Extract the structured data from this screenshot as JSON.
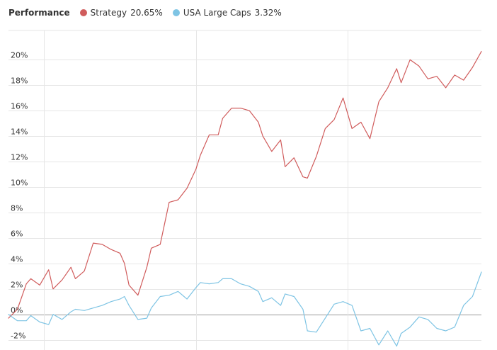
{
  "legend": {
    "title": "Performance",
    "items": [
      {
        "name": "Strategy",
        "value": "20.65%",
        "color": "#d05c5c"
      },
      {
        "name": "USA Large Caps",
        "value": "3.32%",
        "color": "#7ec4e4"
      }
    ]
  },
  "chart_data": {
    "type": "line",
    "title": "Performance",
    "xlabel": "",
    "ylabel": "",
    "ylim": [
      -2.8,
      22.3
    ],
    "yticks": [
      -2,
      0,
      2,
      4,
      6,
      8,
      10,
      12,
      14,
      16,
      18,
      20
    ],
    "ytick_labels": [
      "-2%",
      "0%",
      "2%",
      "4%",
      "6%",
      "8%",
      "10%",
      "12%",
      "14%",
      "16%",
      "18%",
      "20%"
    ],
    "x_vertical_gridlines_at_index": [
      8,
      42,
      76
    ],
    "grid": true,
    "legend_position": "top-left",
    "x_index_range": [
      0,
      106
    ],
    "series": [
      {
        "name": "Strategy",
        "color": "#d05c5c",
        "final": "20.65%",
        "x": [
          0,
          2,
          4,
          5,
          7,
          9,
          10,
          12,
          14,
          15,
          17,
          19,
          21,
          23,
          25,
          26,
          27,
          29,
          31,
          32,
          34,
          36,
          38,
          40,
          42,
          43,
          45,
          47,
          48,
          50,
          52,
          54,
          56,
          57,
          59,
          61,
          62,
          64,
          66,
          67,
          69,
          71,
          73,
          75,
          77,
          79,
          81,
          83,
          85,
          87,
          88,
          90,
          92,
          94,
          96,
          98,
          100,
          102,
          104,
          106
        ],
        "values": [
          -0.3,
          0.4,
          2.4,
          2.8,
          2.3,
          3.5,
          2.0,
          2.7,
          3.7,
          2.8,
          3.4,
          5.6,
          5.5,
          5.1,
          4.8,
          4.0,
          2.3,
          1.5,
          3.7,
          5.2,
          5.5,
          8.8,
          9.0,
          9.9,
          11.4,
          12.5,
          14.1,
          14.1,
          15.4,
          16.2,
          16.2,
          16.0,
          15.1,
          14.0,
          12.8,
          13.7,
          11.6,
          12.3,
          10.8,
          10.7,
          12.4,
          14.6,
          15.3,
          17.0,
          14.6,
          15.1,
          13.8,
          16.7,
          17.8,
          19.3,
          18.2,
          20.0,
          19.5,
          18.5,
          18.7,
          17.8,
          18.8,
          18.4,
          19.4,
          20.65
        ]
      },
      {
        "name": "USA Large Caps",
        "color": "#7ec4e4",
        "final": "3.32%",
        "x": [
          0,
          2,
          4,
          5,
          7,
          9,
          10,
          12,
          14,
          15,
          17,
          19,
          21,
          23,
          25,
          26,
          27,
          29,
          31,
          32,
          34,
          36,
          38,
          40,
          42,
          43,
          45,
          47,
          48,
          50,
          52,
          54,
          56,
          57,
          59,
          61,
          62,
          64,
          66,
          67,
          69,
          71,
          73,
          75,
          77,
          79,
          81,
          83,
          85,
          87,
          88,
          90,
          92,
          94,
          96,
          98,
          100,
          102,
          104,
          106
        ],
        "values": [
          0.0,
          -0.5,
          -0.5,
          -0.1,
          -0.6,
          -0.8,
          0.0,
          -0.4,
          0.2,
          0.4,
          0.3,
          0.5,
          0.7,
          1.0,
          1.2,
          1.4,
          0.7,
          -0.4,
          -0.3,
          0.5,
          1.4,
          1.5,
          1.8,
          1.2,
          2.1,
          2.5,
          2.4,
          2.5,
          2.8,
          2.8,
          2.4,
          2.2,
          1.8,
          1.0,
          1.3,
          0.7,
          1.6,
          1.4,
          0.4,
          -1.3,
          -1.4,
          -0.3,
          0.8,
          1.0,
          0.7,
          -1.3,
          -1.1,
          -2.4,
          -1.3,
          -2.5,
          -1.5,
          -1.0,
          -0.2,
          -0.4,
          -1.1,
          -1.3,
          -1.0,
          0.7,
          1.4,
          3.32
        ]
      }
    ]
  }
}
